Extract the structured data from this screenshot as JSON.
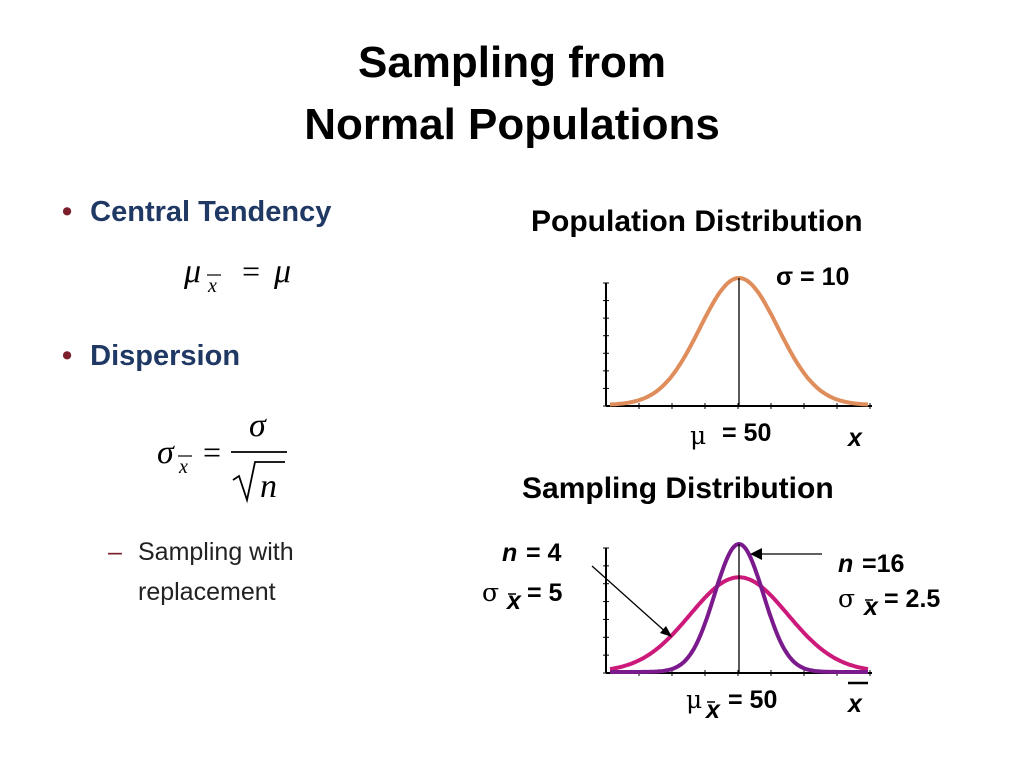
{
  "title": {
    "line1": "Sampling from",
    "line2": "Normal Populations"
  },
  "bullets": [
    {
      "label": "Central Tendency"
    },
    {
      "label": "Dispersion"
    }
  ],
  "sub_bullet": {
    "text": "Sampling with replacement"
  },
  "population": {
    "title": "Population Distribution",
    "sigma_label": "σ = 10",
    "mu": "μ",
    "mu_value": "= 50",
    "x_label": "x"
  },
  "sampling": {
    "title": "Sampling Distribution",
    "n4_n": "n",
    "n4_value": "= 4",
    "n4_sigma": "σ",
    "n4_sub": "x",
    "n4_sigma_value": "= 5",
    "n16_n": "n",
    "n16_value": "=16",
    "n16_sigma": "σ",
    "n16_sub": "x",
    "n16_sigma_value": "= 2.5",
    "mu": "μ",
    "mu_sub": "x",
    "mu_value": "= 50",
    "x_label": "x"
  },
  "colors": {
    "bullet_text": "#1f3864",
    "bullet_dot": "#7a1f2b",
    "population_curve": "#e08d5c",
    "n4_curve": "#cc1a7a",
    "n16_curve": "#7a1a8c"
  },
  "chart_data": [
    {
      "type": "line",
      "title": "Population Distribution",
      "distribution": "normal",
      "mean": 50,
      "sd": 10,
      "xlabel": "x"
    },
    {
      "type": "line",
      "title": "Sampling Distribution",
      "xlabel": "x",
      "series": [
        {
          "name": "n = 4",
          "mean": 50,
          "sd": 5
        },
        {
          "name": "n =16",
          "mean": 50,
          "sd": 2.5
        }
      ]
    }
  ]
}
